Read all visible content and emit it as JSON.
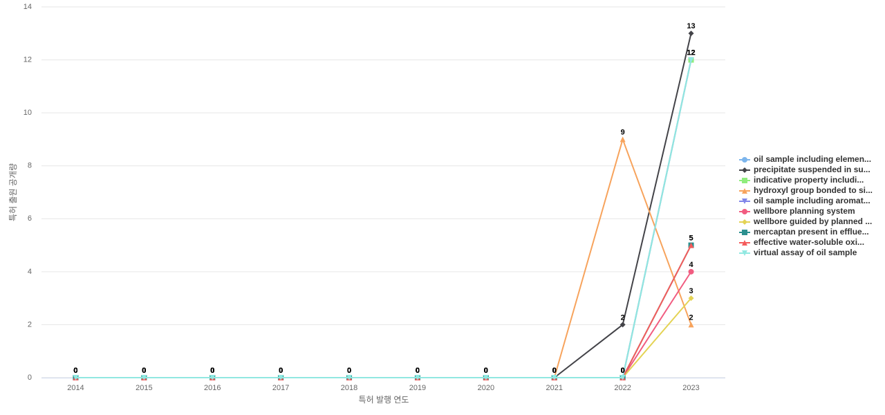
{
  "chart_data": {
    "type": "line",
    "x_label": "특허 발행 연도",
    "y_label": "특허 출원 공개량",
    "categories": [
      "2014",
      "2015",
      "2016",
      "2017",
      "2018",
      "2019",
      "2020",
      "2021",
      "2022",
      "2023"
    ],
    "ylim": [
      0,
      14
    ],
    "yticks": [
      0,
      2,
      4,
      6,
      8,
      10,
      12,
      14
    ],
    "grid": true,
    "series": [
      {
        "name": "oil sample including elemen...",
        "color": "#7cb5ec",
        "values": [
          0,
          0,
          0,
          0,
          0,
          0,
          0,
          0,
          0,
          12
        ]
      },
      {
        "name": "precipitate suspended in su...",
        "color": "#434348",
        "values": [
          0,
          0,
          0,
          0,
          0,
          0,
          0,
          0,
          2,
          13
        ]
      },
      {
        "name": "indicative property includi...",
        "color": "#90ed7d",
        "values": [
          0,
          0,
          0,
          0,
          0,
          0,
          0,
          0,
          0,
          12
        ]
      },
      {
        "name": "hydroxyl group bonded to si...",
        "color": "#f7a35c",
        "values": [
          0,
          0,
          0,
          0,
          0,
          0,
          0,
          0,
          9,
          2
        ]
      },
      {
        "name": "oil sample including aromat...",
        "color": "#8085e9",
        "values": [
          0,
          0,
          0,
          0,
          0,
          0,
          0,
          0,
          0,
          12
        ]
      },
      {
        "name": "wellbore planning system",
        "color": "#f15c80",
        "values": [
          0,
          0,
          0,
          0,
          0,
          0,
          0,
          0,
          0,
          4
        ]
      },
      {
        "name": "wellbore guided by planned ...",
        "color": "#e4d354",
        "values": [
          0,
          0,
          0,
          0,
          0,
          0,
          0,
          0,
          0,
          3
        ]
      },
      {
        "name": "mercaptan present in efflue...",
        "color": "#2b908f",
        "values": [
          0,
          0,
          0,
          0,
          0,
          0,
          0,
          0,
          0,
          5
        ]
      },
      {
        "name": "effective water-soluble oxi...",
        "color": "#f45b5b",
        "values": [
          0,
          0,
          0,
          0,
          0,
          0,
          0,
          0,
          0,
          5
        ]
      },
      {
        "name": "virtual assay of oil sample",
        "color": "#91e8e1",
        "values": [
          0,
          0,
          0,
          0,
          0,
          0,
          0,
          0,
          0,
          12
        ]
      }
    ]
  }
}
